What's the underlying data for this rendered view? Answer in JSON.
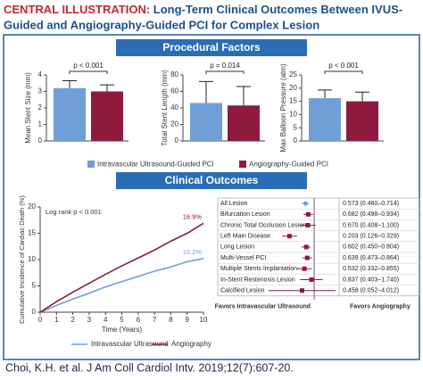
{
  "header": {
    "label": "CENTRAL ILLUSTRATION:",
    "title_lines": [
      "Long-Term Clinical Outcomes Between IVUS-",
      "Guided and Angiography-Guided PCI for Complex Lesion"
    ]
  },
  "sections": [
    "Procedural Factors",
    "Clinical Outcomes"
  ],
  "citation": "Choi, K.H. et al. J Am Coll Cardiol Intv. 2019;12(7):607-20.",
  "chart_data": [
    {
      "type": "bar",
      "y_label": "Mean Stent Size (mm)",
      "annotation": "p < 0.001",
      "ylim": [
        0,
        4
      ],
      "yticks": [
        0,
        1,
        2,
        3,
        4
      ],
      "series": [
        {
          "name": "Intravascular Ultrasound-Guided PCI",
          "color": "#6f9fd6",
          "values": [
            3.2
          ],
          "errors": [
            0.45
          ]
        },
        {
          "name": "Angiography-Guided PCI",
          "color": "#8e1b3d",
          "values": [
            3.0
          ],
          "errors": [
            0.4
          ]
        }
      ]
    },
    {
      "type": "bar",
      "y_label": "Total Stent Length (mm)",
      "annotation": "p = 0.014",
      "ylim": [
        0,
        80
      ],
      "yticks": [
        0,
        20,
        40,
        60,
        80
      ],
      "series": [
        {
          "color": "#6f9fd6",
          "values": [
            46
          ],
          "errors": [
            26
          ]
        },
        {
          "color": "#8e1b3d",
          "values": [
            43
          ],
          "errors": [
            23
          ]
        }
      ]
    },
    {
      "type": "bar",
      "y_label": "Max Balloon Pressure (atm)",
      "annotation": "p < 0.001",
      "ylim": [
        0,
        25
      ],
      "yticks": [
        0,
        5,
        10,
        15,
        20,
        25
      ],
      "series": [
        {
          "color": "#6f9fd6",
          "values": [
            16.2
          ],
          "errors": [
            3.1
          ]
        },
        {
          "color": "#8e1b3d",
          "values": [
            15
          ],
          "errors": [
            3.5
          ]
        }
      ]
    },
    {
      "type": "line",
      "y_label": "Cumulative Incidence of Cardiac Death (%)",
      "x_label": "Time (Years)",
      "annotation": "Log rank p < 0.001",
      "xlim": [
        0,
        10
      ],
      "xticks": [
        0,
        1,
        2,
        3,
        4,
        5,
        6,
        7,
        8,
        9,
        10
      ],
      "ylim": [
        0,
        20
      ],
      "yticks": [
        0,
        5,
        10,
        15,
        20
      ],
      "x": [
        0,
        1,
        2,
        3,
        4,
        5,
        6,
        7,
        8,
        9,
        10
      ],
      "series": [
        {
          "name": "Intravascular Ultrasound",
          "color": "#6f9fd6",
          "values": [
            0,
            1.3,
            2.5,
            3.6,
            4.8,
            5.8,
            6.8,
            7.8,
            8.6,
            9.6,
            10.2
          ],
          "end_label": "10.2%"
        },
        {
          "name": "Angiography",
          "color": "#8e1b3d",
          "values": [
            0,
            2.0,
            3.8,
            5.5,
            7.2,
            8.8,
            10.3,
            11.8,
            13.5,
            15.0,
            16.9
          ],
          "end_label": "16.9%"
        }
      ]
    },
    {
      "type": "forest",
      "log_scale": true,
      "xlim": [
        0.05,
        5
      ],
      "reference": 1,
      "x_labels": [
        "Favors Intravascular Ultrasound",
        "Favors Angiography"
      ],
      "colors": [
        "#6f9fd6",
        "#8e1b3d"
      ],
      "categories": [
        "All Lesion",
        "Bifurcation Lesion",
        "Chronic Total Occlusion Lesion",
        "Left Main Disease",
        "Long Lesion",
        "Multi-Vessel PCI",
        "Multiple Stents Implantation",
        "In-Stent Restenosis Lesion",
        "Calcified Lesion"
      ],
      "values": [
        0.573,
        0.682,
        0.67,
        0.203,
        0.602,
        0.639,
        0.532,
        0.837,
        0.458
      ],
      "ci_low": [
        0.46,
        0.498,
        0.408,
        0.126,
        0.45,
        0.473,
        0.332,
        0.403,
        0.052
      ],
      "ci_high": [
        0.714,
        0.934,
        1.1,
        0.329,
        0.804,
        0.864,
        0.855,
        1.74,
        4.012
      ],
      "value_labels": [
        "0.573 (0.460–0.714)",
        "0.682 (0.498–0.934)",
        "0.670 (0.408–1.100)",
        "0.203 (0.126–0.329)",
        "0.602 (0.450–0.804)",
        "0.639 (0.473–0.864)",
        "0.532 (0.332–0.855)",
        "0.837 (0.403–1.740)",
        "0.458 (0.052–4.012)"
      ]
    }
  ]
}
